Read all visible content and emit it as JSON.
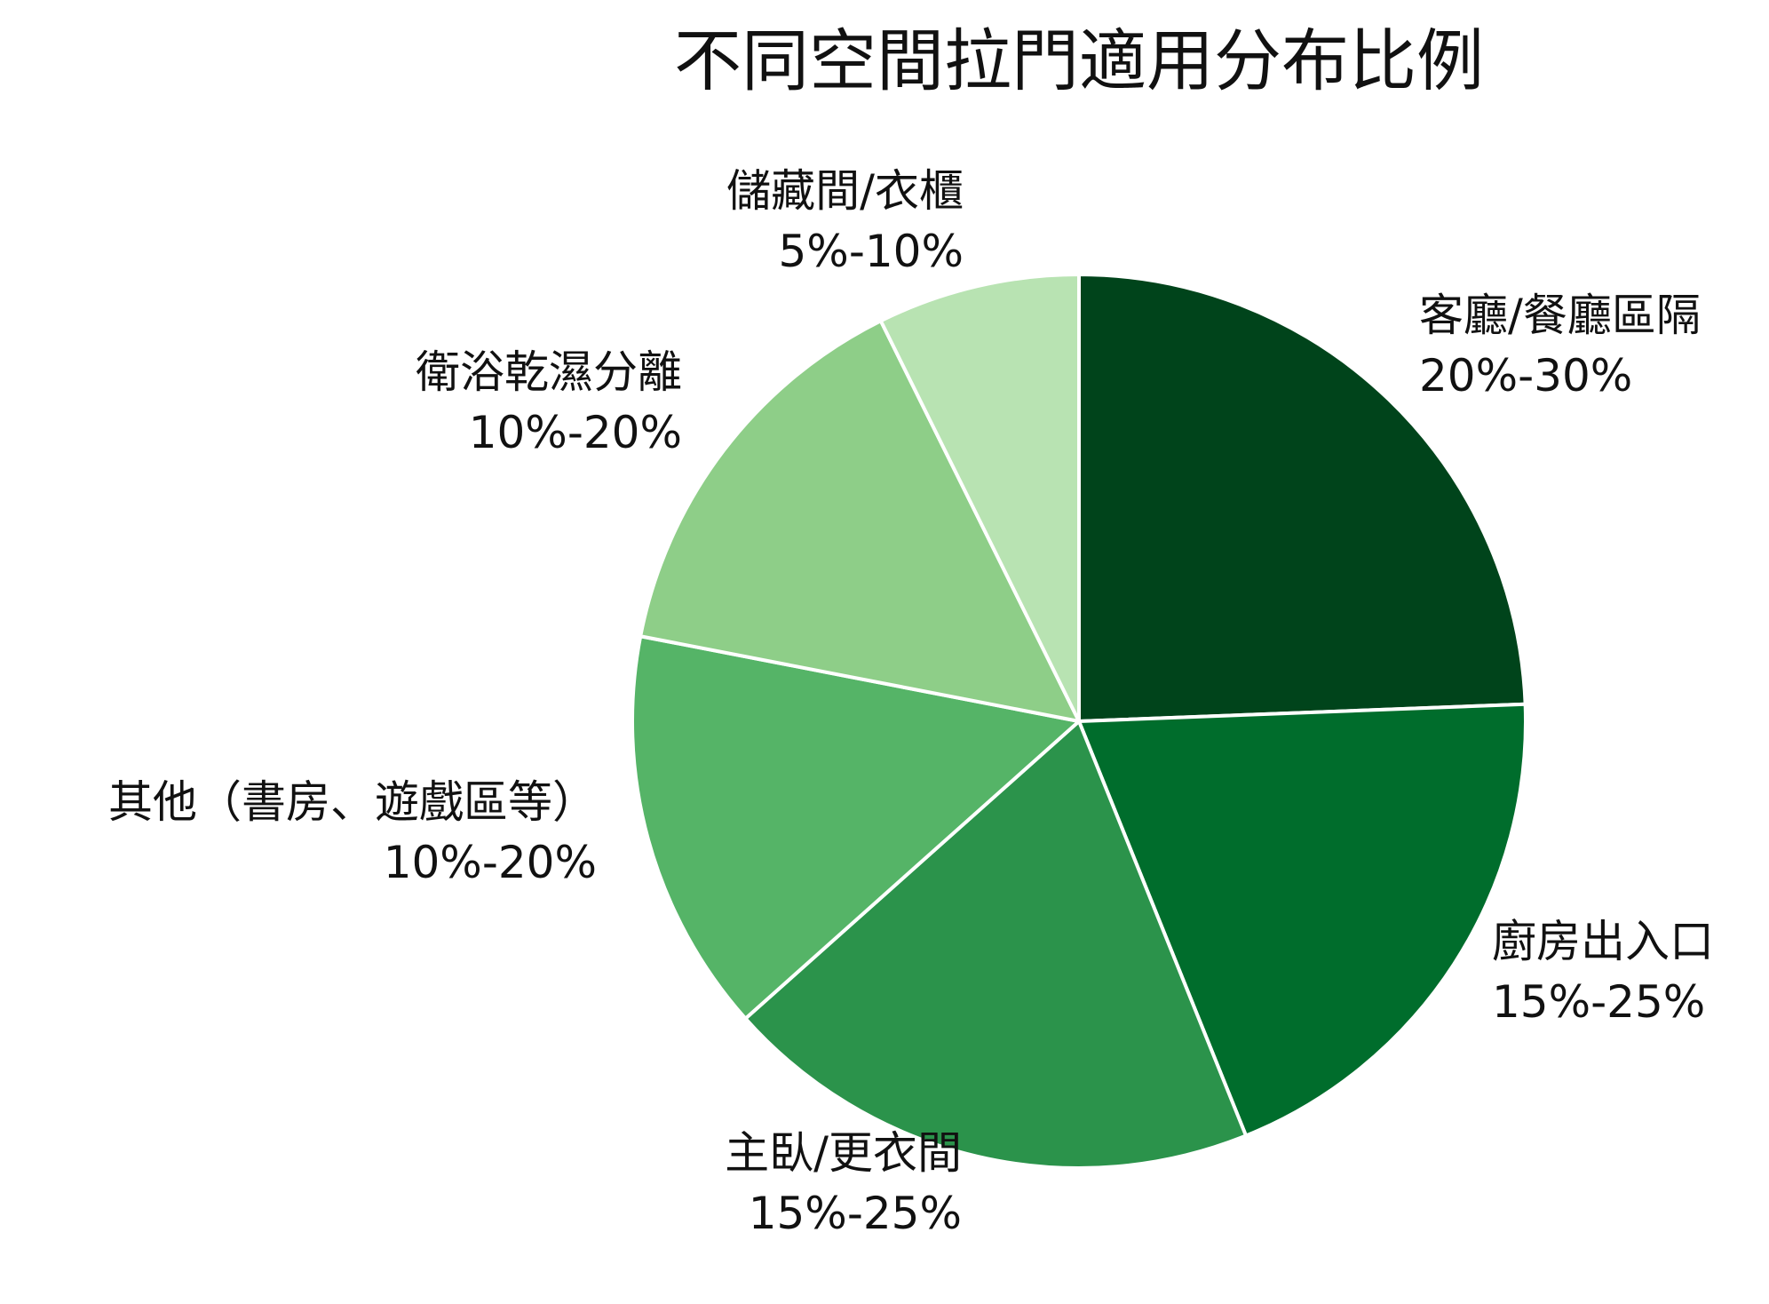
{
  "chart_data": {
    "type": "pie",
    "title": "不同空間拉門適用分布比例",
    "slices": [
      {
        "name": "客廳/餐廳區隔",
        "range_label": "20%-30%",
        "value": 25,
        "color": "#00441b"
      },
      {
        "name": "廚房出入口",
        "range_label": "15%-25%",
        "value": 20,
        "color": "#006d2c"
      },
      {
        "name": "主臥/更衣間",
        "range_label": "15%-25%",
        "value": 20,
        "color": "#2b934b"
      },
      {
        "name": "其他（書房、遊戲區等）",
        "range_label": "10%-20%",
        "value": 15,
        "color": "#55b467"
      },
      {
        "name": "衛浴乾濕分離",
        "range_label": "10%-20%",
        "value": 15,
        "color": "#8ece88"
      },
      {
        "name": "儲藏間/衣櫃",
        "range_label": "5%-10%",
        "value": 7.5,
        "color": "#b8e3b2"
      }
    ],
    "start_angle": "12 o'clock",
    "direction": "clockwise",
    "legend": "none",
    "slice_border_color": "#ffffff"
  }
}
